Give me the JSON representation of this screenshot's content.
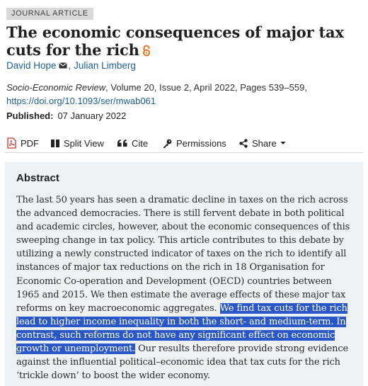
{
  "badge": "JOURNAL ARTICLE",
  "title": "The economic consequences of major tax cuts for the rich",
  "icons": {
    "open_access": "open-access-lock-icon",
    "email": "email-icon"
  },
  "colors": {
    "link": "#1c5f98",
    "open_access": "#e8721c",
    "highlight": "#2a57c8",
    "abstract_bg": "#eef1f4"
  },
  "authors": [
    {
      "name": "David Hope"
    },
    {
      "name": "Julian Limberg"
    }
  ],
  "author_separator": ", ",
  "citation": {
    "journal": "Socio-Economic Review",
    "details": ", Volume 20, Issue 2, April 2022, Pages 539–559,",
    "doi": "https://doi.org/10.1093/ser/mwab061"
  },
  "published": {
    "label": "Published:",
    "date": "07 January 2022"
  },
  "toolbar": {
    "pdf": "PDF",
    "split_view": "Split View",
    "cite": "Cite",
    "permissions": "Permissions",
    "share": "Share"
  },
  "abstract": {
    "heading": "Abstract",
    "text_before": "The last 50 years has seen a dramatic decline in taxes on the rich across the advanced democracies. There is still fervent debate in both political and academic circles, however, about the economic consequences of this sweeping change in tax policy. This article contributes to this debate by utilizing a newly constructed indicator of taxes on the rich to identify all instances of major tax reductions on the rich in 18 Organisation for Economic Co-operation and Development (OECD) countries between 1965 and 2015. We then estimate the average effects of these major tax reforms on key macroeconomic aggregates. ",
    "text_highlighted": "We find tax cuts for the rich lead to higher income inequality in both the short- and medium-term. In contrast, such reforms do not have any significant effect on economic growth or unemployment.",
    "text_after": " Our results therefore provide strong evidence against the influential political–economic idea that tax cuts for the rich ‘trickle down’ to boost the wider economy."
  }
}
